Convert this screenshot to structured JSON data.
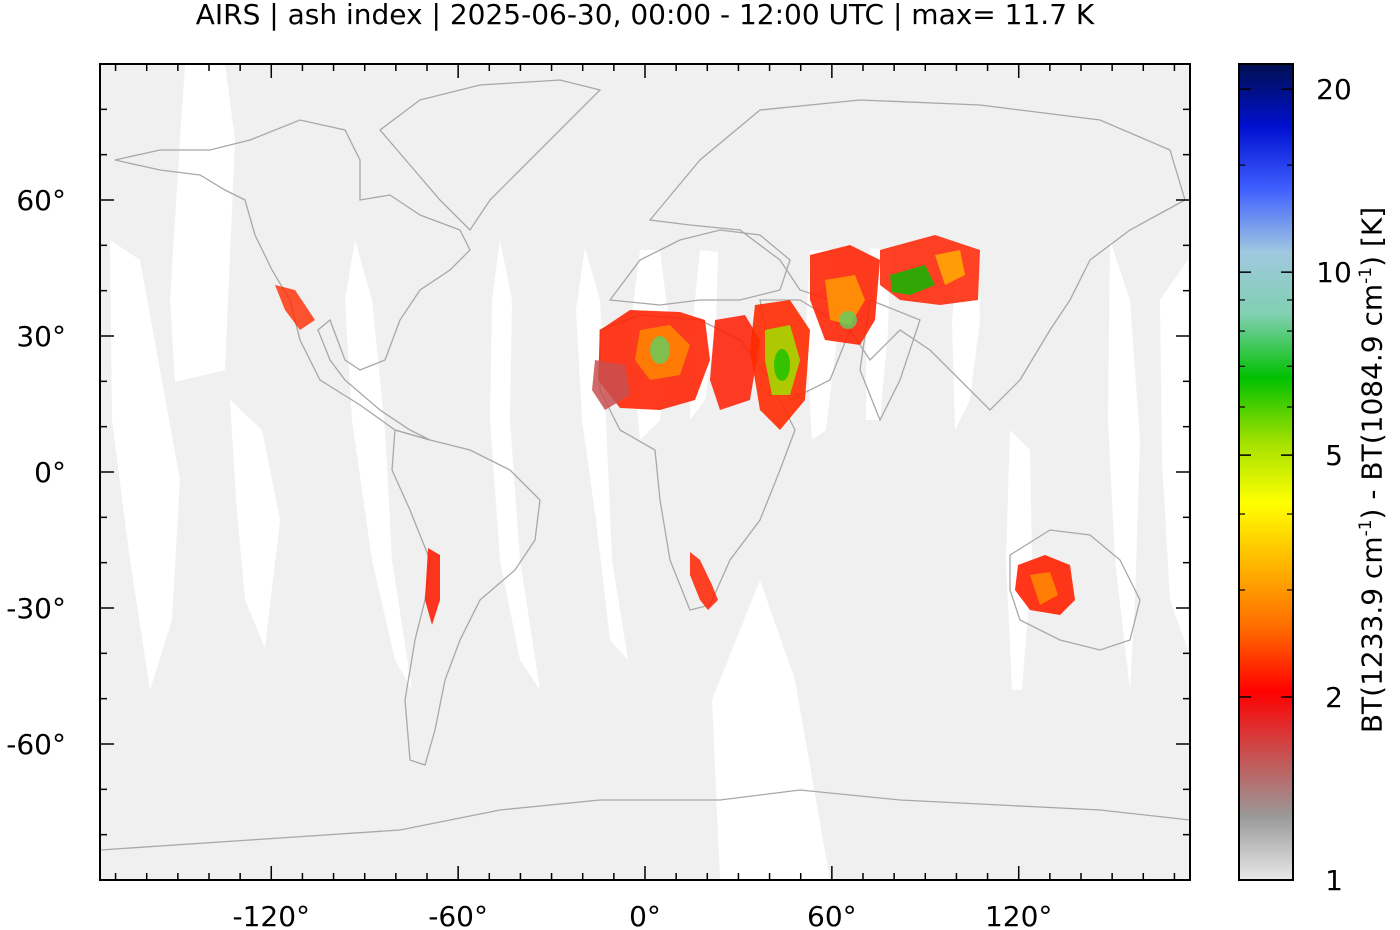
{
  "title": "AIRS | ash index | 2025-06-30, 00:00 - 12:00 UTC | max= 11.7 K",
  "map": {
    "lat_range": [
      -90,
      90
    ],
    "lon_range": [
      -175,
      175
    ],
    "lat_ticks": [
      {
        "value": 60,
        "label": "60°"
      },
      {
        "value": 30,
        "label": "30°"
      },
      {
        "value": 0,
        "label": "0°"
      },
      {
        "value": -30,
        "label": "-30°"
      },
      {
        "value": -60,
        "label": "-60°"
      }
    ],
    "lon_ticks": [
      {
        "value": -120,
        "label": "-120°"
      },
      {
        "value": -60,
        "label": "-60°"
      },
      {
        "value": 0,
        "label": "0°"
      },
      {
        "value": 60,
        "label": "60°"
      },
      {
        "value": 120,
        "label": "120°"
      }
    ],
    "background_color": "#f0f0f0",
    "gap_color": "#ffffff",
    "coastline_color": "#a8a8a8"
  },
  "colorbar": {
    "label_parts": [
      "BT(1233.9 cm",
      "-1",
      ") - BT(1084.9 cm",
      "-1",
      ") [K]"
    ],
    "ticks": [
      {
        "value": 1,
        "label": "1"
      },
      {
        "value": 2,
        "label": "2"
      },
      {
        "value": 5,
        "label": "5"
      },
      {
        "value": 10,
        "label": "10"
      },
      {
        "value": 20,
        "label": "20"
      }
    ],
    "range": [
      1,
      22
    ],
    "scale": "log",
    "colors": [
      "#e8e8e8",
      "#9a9a9a",
      "#c85050",
      "#ff0000",
      "#ff6a00",
      "#ffb400",
      "#ffff00",
      "#a0e000",
      "#00c000",
      "#80d0b0",
      "#a0c8e0",
      "#4060ff",
      "#0010d0",
      "#001050"
    ]
  }
}
